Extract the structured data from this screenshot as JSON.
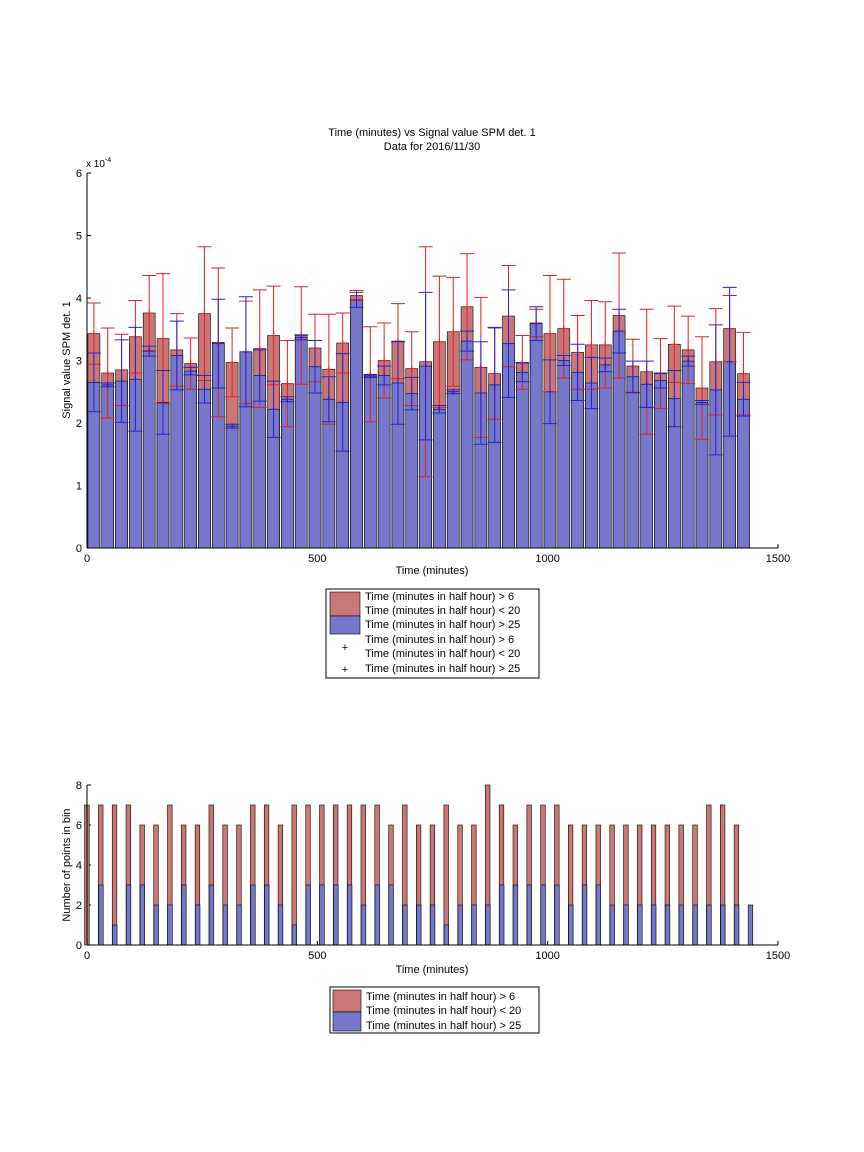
{
  "chart_data": [
    {
      "type": "bar",
      "title": "Time (minutes) vs Signal value SPM det. 1",
      "subtitle": "Data for 2016/11/30",
      "xlabel": "Time (minutes)",
      "ylabel": "Signal value SPM det. 1",
      "y_multiplier_label": "x 10",
      "y_multiplier_exponent": "-4",
      "xlim": [
        0,
        1500
      ],
      "ylim": [
        0,
        6
      ],
      "xticks": [
        0,
        500,
        1000,
        1500
      ],
      "yticks": [
        0,
        1,
        2,
        3,
        4,
        5,
        6
      ],
      "legend_position": "below",
      "grid": false,
      "legend": [
        "Time (minutes in half hour) > 6",
        "Time (minutes in half hour) < 20",
        "Time (minutes in half hour) > 25",
        "Time (minutes in half hour) > 6",
        "Time (minutes in half hour) < 20",
        "Time (minutes in half hour) > 25"
      ],
      "x": [
        15,
        45,
        75,
        105,
        135,
        165,
        195,
        225,
        255,
        285,
        315,
        345,
        375,
        405,
        435,
        465,
        495,
        525,
        555,
        585,
        615,
        645,
        675,
        705,
        735,
        765,
        795,
        825,
        855,
        885,
        915,
        945,
        975,
        1005,
        1035,
        1065,
        1095,
        1125,
        1155,
        1185,
        1215,
        1245,
        1275,
        1305,
        1335,
        1365,
        1395,
        1425
      ],
      "series": [
        {
          "name": "Time (minutes in half hour) > 6",
          "color": "#cc7777",
          "values": [
            3.43,
            2.8,
            2.85,
            3.38,
            3.76,
            3.35,
            3.17,
            2.95,
            3.75,
            3.29,
            2.97,
            3.13,
            3.19,
            3.4,
            2.63,
            3.4,
            3.2,
            2.86,
            3.28,
            4.04,
            2.78,
            3.0,
            3.31,
            2.87,
            2.98,
            3.3,
            3.46,
            3.86,
            2.89,
            2.79,
            3.71,
            2.97,
            3.6,
            3.43,
            3.51,
            3.13,
            3.25,
            3.25,
            3.72,
            2.91,
            2.82,
            2.79,
            3.26,
            3.17,
            2.56,
            2.98,
            3.51,
            2.79
          ],
          "error": [
            0.49,
            0.72,
            0.57,
            0.58,
            0.6,
            1.04,
            0.58,
            0.41,
            1.07,
            1.19,
            0.55,
            0.82,
            0.94,
            0.79,
            0.69,
            0.78,
            0.54,
            0.88,
            0.48,
            0.08,
            0.76,
            0.6,
            0.6,
            0.59,
            1.84,
            1.05,
            0.87,
            0.85,
            1.12,
            0.73,
            0.81,
            0.43,
            0.22,
            0.93,
            0.79,
            0.59,
            0.71,
            0.69,
            1.0,
            0.43,
            1.0,
            0.56,
            0.61,
            0.54,
            0.82,
            0.85,
            0.53,
            0.66
          ]
        },
        {
          "name": "Time (minutes in half hour) > 25",
          "color": "#7777cc",
          "values": [
            2.65,
            2.61,
            2.67,
            2.7,
            3.15,
            2.33,
            3.08,
            2.83,
            2.54,
            3.27,
            1.95,
            3.14,
            2.76,
            2.22,
            2.38,
            3.37,
            2.9,
            2.38,
            2.33,
            3.97,
            2.75,
            2.76,
            2.64,
            2.47,
            2.91,
            2.22,
            2.5,
            3.31,
            2.48,
            2.61,
            3.27,
            2.81,
            3.59,
            2.5,
            3.0,
            2.81,
            2.64,
            2.93,
            3.47,
            2.74,
            2.62,
            2.68,
            2.39,
            2.99,
            2.33,
            2.53,
            2.98,
            2.38
          ],
          "error": [
            0.47,
            0.03,
            0.66,
            0.83,
            0.08,
            0.51,
            0.55,
            0.06,
            0.22,
            0.71,
            0.03,
            0.88,
            0.41,
            0.45,
            0.04,
            0.04,
            0.42,
            0.36,
            0.78,
            0.12,
            0.02,
            0.15,
            0.66,
            0.26,
            1.18,
            0.06,
            0.03,
            0.16,
            0.82,
            0.92,
            0.86,
            0.15,
            0.27,
            0.51,
            0.08,
            0.45,
            0.41,
            0.11,
            0.35,
            0.25,
            0.37,
            0.12,
            0.45,
            0.08,
            0.03,
            1.04,
            1.19,
            0.27
          ]
        }
      ]
    },
    {
      "type": "bar",
      "xlabel": "Time (minutes)",
      "ylabel": "Number of points in bin",
      "xlim": [
        0,
        1500
      ],
      "ylim": [
        0,
        8
      ],
      "xticks": [
        0,
        500,
        1000,
        1500
      ],
      "yticks": [
        0,
        2,
        4,
        6,
        8
      ],
      "legend_position": "below",
      "grid": false,
      "legend": [
        "Time (minutes in half hour) > 6",
        "Time (minutes in half hour) < 20",
        "Time (minutes in half hour) > 25"
      ],
      "x": [
        15,
        45,
        75,
        105,
        135,
        165,
        195,
        225,
        255,
        285,
        315,
        345,
        375,
        405,
        435,
        465,
        495,
        525,
        555,
        585,
        615,
        645,
        675,
        705,
        735,
        765,
        795,
        825,
        855,
        885,
        915,
        945,
        975,
        1005,
        1035,
        1065,
        1095,
        1125,
        1155,
        1185,
        1215,
        1245,
        1275,
        1305,
        1335,
        1365,
        1395,
        1425
      ],
      "series": [
        {
          "name": "Time (minutes in half hour) > 6",
          "color": "#cc7777",
          "values": [
            7,
            7,
            7,
            7,
            6,
            6,
            7,
            6,
            6,
            7,
            6,
            6,
            7,
            7,
            6,
            7,
            7,
            7,
            7,
            7,
            7,
            7,
            6,
            7,
            6,
            6,
            7,
            6,
            6,
            8,
            7,
            6,
            7,
            7,
            7,
            6,
            6,
            6,
            6,
            6,
            6,
            6,
            6,
            6,
            6,
            7,
            7,
            6
          ]
        },
        {
          "name": "Time (minutes in half hour) > 25",
          "color": "#7777cc",
          "values": [
            3,
            1,
            3,
            3,
            2,
            2,
            3,
            2,
            3,
            2,
            2,
            3,
            3,
            2,
            1,
            3,
            3,
            3,
            3,
            2,
            3,
            3,
            2,
            2,
            2,
            1,
            2,
            2,
            2,
            3,
            3,
            3,
            3,
            3,
            2,
            3,
            3,
            2,
            2,
            2,
            2,
            2,
            2,
            2,
            2,
            2,
            2,
            2
          ]
        }
      ]
    }
  ]
}
